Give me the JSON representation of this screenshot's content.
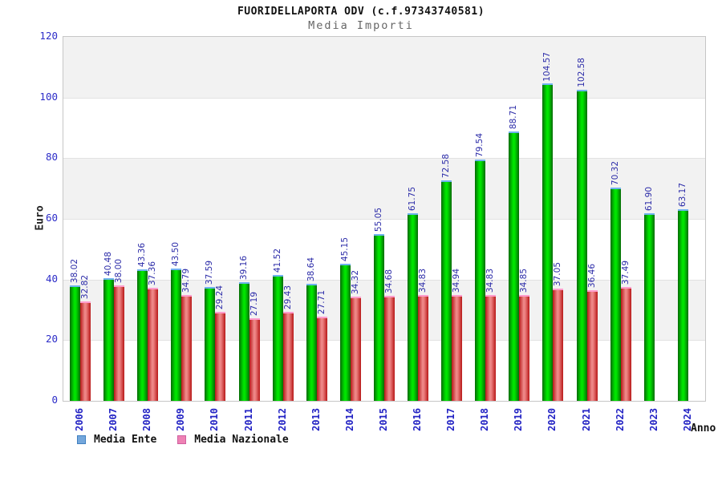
{
  "header": {
    "title": "FUORIDELLAPORTA ODV (c.f.97343740581)",
    "subtitle": "Media Importi"
  },
  "chart_data": {
    "type": "bar",
    "title": "FUORIDELLAPORTA ODV (c.f.97343740581)",
    "subtitle": "Media Importi",
    "xlabel": "Anno",
    "ylabel": "Euro",
    "ylim": [
      0,
      120
    ],
    "yticks": [
      0,
      20,
      40,
      60,
      80,
      100,
      120
    ],
    "grid": "horizontal-bands-alternating",
    "legend_position": "bottom-left",
    "categories": [
      "2006",
      "2007",
      "2008",
      "2009",
      "2010",
      "2011",
      "2012",
      "2013",
      "2014",
      "2015",
      "2016",
      "2017",
      "2018",
      "2019",
      "2020",
      "2021",
      "2022",
      "2023",
      "2024"
    ],
    "series": [
      {
        "name": "Media Ente",
        "values": [
          38.02,
          40.48,
          43.36,
          43.5,
          37.59,
          39.16,
          41.52,
          38.64,
          45.15,
          55.05,
          61.75,
          72.58,
          79.54,
          88.71,
          104.57,
          102.58,
          70.32,
          61.9,
          63.17
        ]
      },
      {
        "name": "Media Nazionale",
        "values": [
          32.82,
          38.0,
          37.36,
          34.79,
          29.24,
          27.19,
          29.43,
          27.71,
          34.32,
          34.68,
          34.83,
          34.94,
          34.83,
          34.85,
          37.05,
          36.46,
          37.49,
          null,
          null
        ]
      }
    ]
  },
  "colors": {
    "band_gray": "#f2f2f2",
    "band_white": "#ffffff",
    "bar_ente_main": "#00d800",
    "bar_ente_edge": "#046a04",
    "bar_ente_cap": "#6fb2ee",
    "bar_naz_main": "#ef8c8c",
    "bar_naz_edge": "#b81818",
    "bar_naz_cap": "#ff9ccc",
    "value_label": "#2b2ba8",
    "axis_tick_label": "#2d2dc8",
    "legend_swatch_ente_fill": "#74a7dc",
    "legend_swatch_ente_border": "#4080c0",
    "legend_swatch_naz_fill": "#ee82b4",
    "legend_swatch_naz_border": "#d060a0"
  }
}
